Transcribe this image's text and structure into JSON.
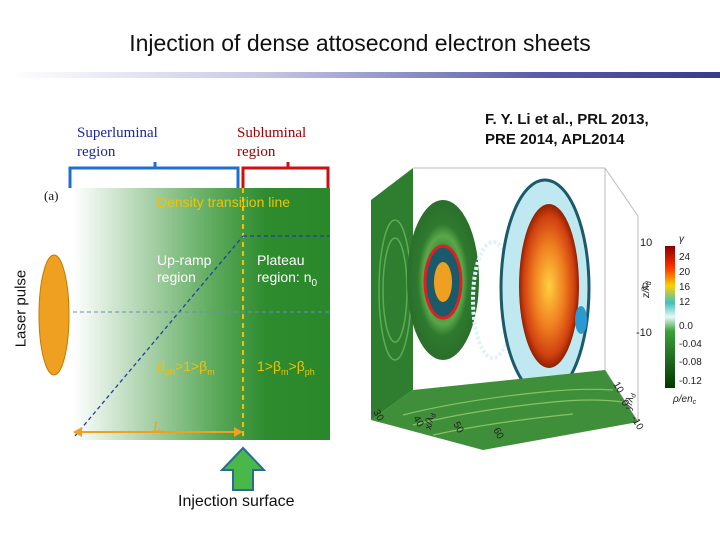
{
  "slide": {
    "title": "Injection of dense attosecond electron sheets",
    "superluminal_label": "Superluminal region",
    "subluminal_label": "Subluminal region",
    "citation_line1": "F. Y. Li et al., PRL 2013,",
    "citation_line2": "PRE 2014, APL2014",
    "injection_surface_label": "Injection surface"
  },
  "left_figure": {
    "panel_label": "(a)",
    "laser_pulse_label": "Laser pulse",
    "density_transition_label": "Density transition line",
    "upramp_label_1": "Up-ramp",
    "upramp_label_2": "region",
    "plateau_label_1": "Plateau",
    "plateau_label_2": "region: n",
    "plateau_sub": "0",
    "beta_left": "β",
    "beta_left_sub1": "ph",
    "beta_left_mid": ">1>β",
    "beta_left_sub2": "m",
    "beta_right": "1>β",
    "beta_right_sub1": "m",
    "beta_right_mid": ">β",
    "beta_right_sub2": "ph",
    "length_label": "L",
    "length_sub": "t"
  },
  "right_figure": {
    "axis_x": "x/λ",
    "axis_x_sub": "d",
    "axis_y": "y/λ",
    "axis_y_sub": "d",
    "axis_z": "z/λ",
    "axis_z_sub": "d",
    "x_ticks": [
      "30",
      "40",
      "50",
      "60"
    ],
    "y_ticks": [
      "10",
      "0",
      "-10"
    ],
    "z_ticks": [
      "10",
      "0",
      "-10"
    ],
    "colorbar_top_label": "γ",
    "colorbar_bottom_label": "ρ/en",
    "colorbar_bottom_sub": "c",
    "colorbar_ticks": [
      "24",
      "20",
      "16",
      "12",
      "0.0",
      "-0.04",
      "-0.08",
      "-0.12"
    ]
  },
  "colors": {
    "superluminal_bracket": "#1f6fd0",
    "subluminal_bracket": "#d01010",
    "plasma_green": "#2a882a",
    "laser_orange": "#f0a020",
    "arrow_green": "#48b848",
    "label_yellow": "#f2c200"
  }
}
